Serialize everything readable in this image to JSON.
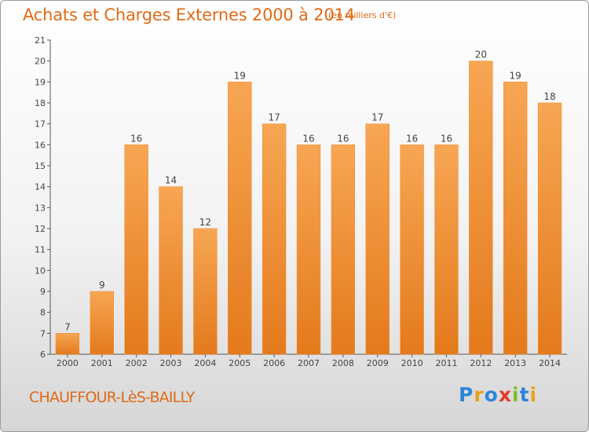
{
  "chart_data": {
    "type": "bar",
    "title": "Achats et Charges Externes 2000 à 2014",
    "unit_note": "(en milliers d'€)",
    "categories": [
      "2000",
      "2001",
      "2002",
      "2003",
      "2004",
      "2005",
      "2006",
      "2007",
      "2008",
      "2009",
      "2010",
      "2011",
      "2012",
      "2013",
      "2014"
    ],
    "values": [
      7,
      9,
      16,
      14,
      12,
      19,
      17,
      16,
      16,
      17,
      16,
      16,
      20,
      19,
      18
    ],
    "ylim": [
      6,
      21
    ],
    "yticks": [
      6,
      7,
      8,
      9,
      10,
      11,
      12,
      13,
      14,
      15,
      16,
      17,
      18,
      19,
      20,
      21
    ],
    "grid": false,
    "bar_color": "#f08a2c",
    "bar_color_light": "#f7a653",
    "bar_color_dark": "#e47a1c"
  },
  "footer": {
    "place": "CHAUFFOUR-LèS-BAILLY",
    "logo_letters": [
      {
        "ch": "P",
        "color": "#2b86d9"
      },
      {
        "ch": "r",
        "color": "#e8a21c"
      },
      {
        "ch": "o",
        "color": "#2b86d9"
      },
      {
        "ch": "x",
        "color": "#e23a2a"
      },
      {
        "ch": "i",
        "color": "#7bbf2f"
      },
      {
        "ch": "t",
        "color": "#2b86d9"
      },
      {
        "ch": "i",
        "color": "#e8a21c"
      }
    ]
  }
}
